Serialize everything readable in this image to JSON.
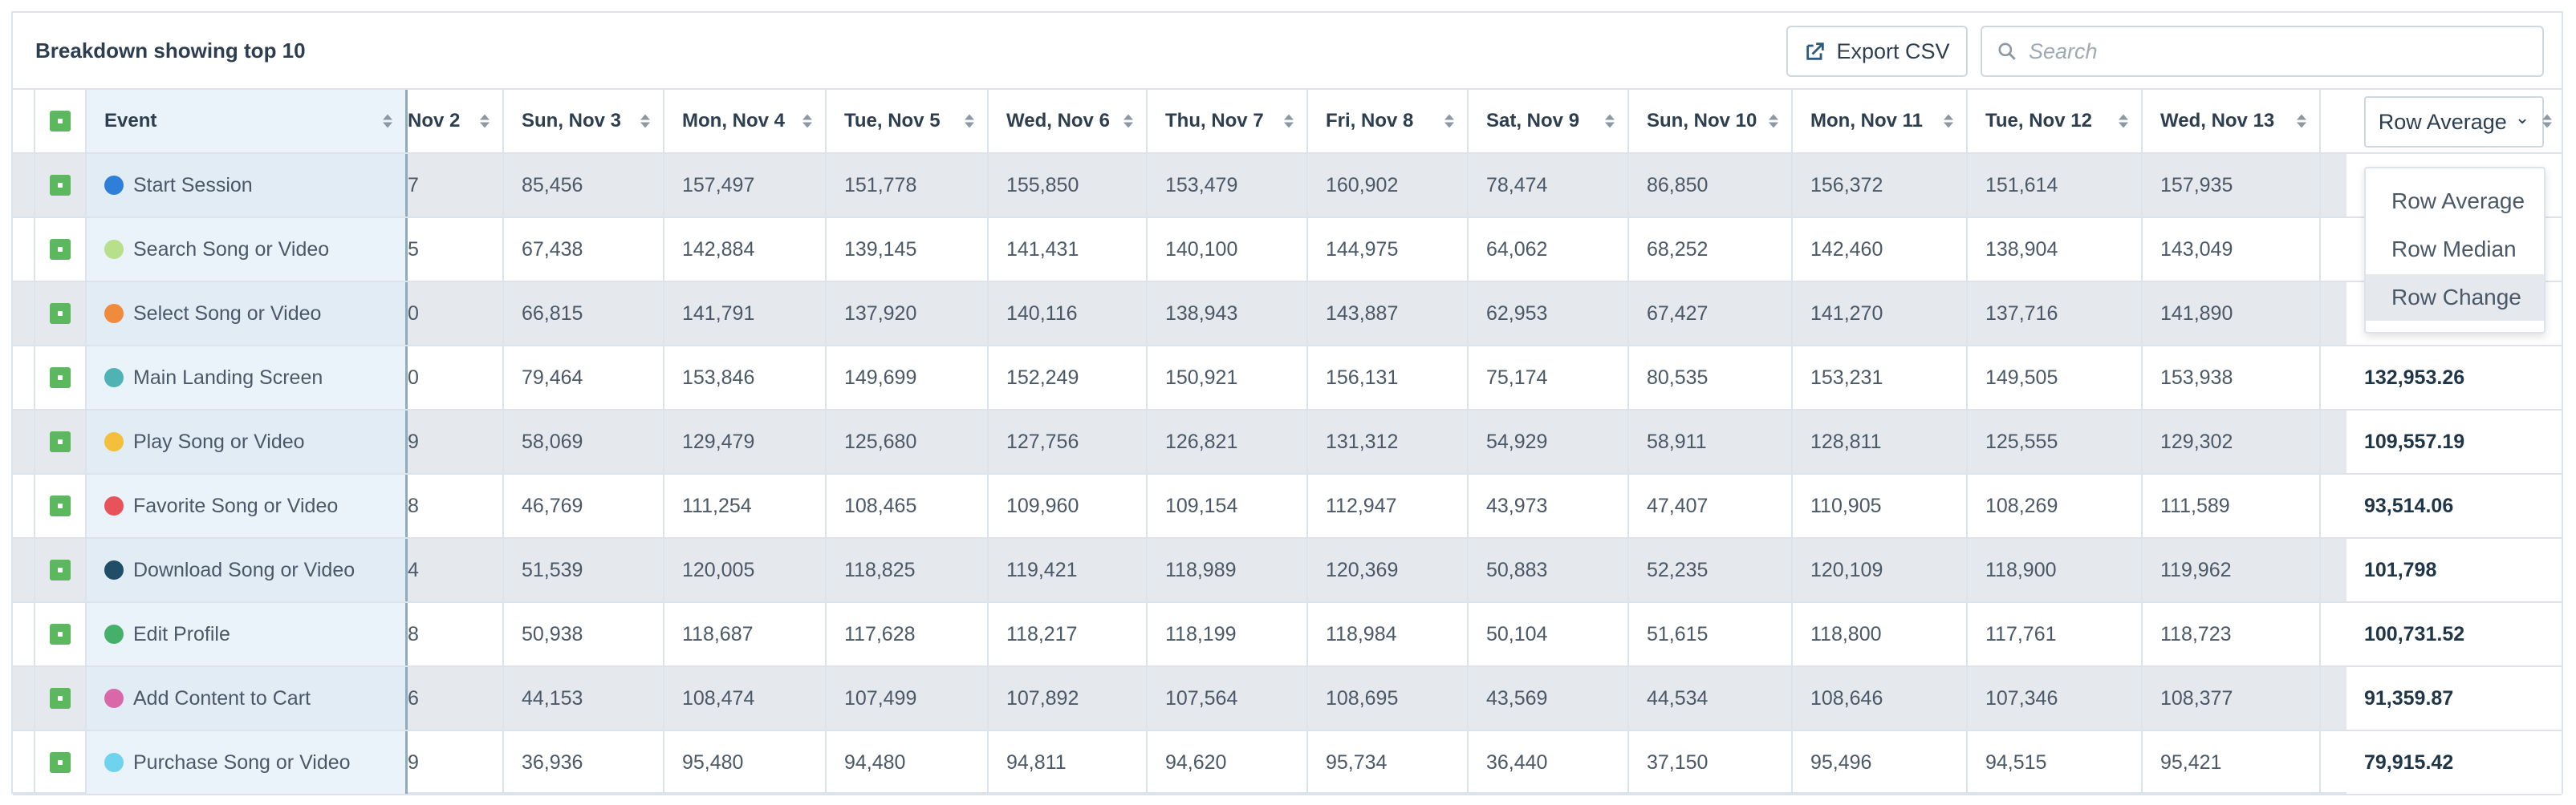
{
  "header": {
    "title": "Breakdown showing top 10",
    "export_label": "Export CSV",
    "search_placeholder": "Search"
  },
  "columns": {
    "event": "Event",
    "dates": [
      "Nov 2",
      "Sun, Nov 3",
      "Mon, Nov 4",
      "Tue, Nov 5",
      "Wed, Nov 6",
      "Thu, Nov 7",
      "Fri, Nov 8",
      "Sat, Nov 9",
      "Sun, Nov 10",
      "Mon, Nov 11",
      "Tue, Nov 12",
      "Wed, Nov 13"
    ],
    "average_selector": "Row Average"
  },
  "dropdown": {
    "options": [
      "Row Average",
      "Row Median",
      "Row Change"
    ],
    "highlighted": "Row Change"
  },
  "rows": [
    {
      "event": "Start Session",
      "color": "#2f7ed8",
      "values": [
        "7",
        "85,456",
        "157,497",
        "151,778",
        "155,850",
        "153,479",
        "160,902",
        "78,474",
        "86,850",
        "156,372",
        "151,614",
        "157,935"
      ],
      "average": ""
    },
    {
      "event": "Search Song or Video",
      "color": "#b8e08a",
      "values": [
        "5",
        "67,438",
        "142,884",
        "139,145",
        "141,431",
        "140,100",
        "144,975",
        "64,062",
        "68,252",
        "142,460",
        "138,904",
        "143,049"
      ],
      "average": ""
    },
    {
      "event": "Select Song or Video",
      "color": "#f08a3c",
      "values": [
        "0",
        "66,815",
        "141,791",
        "137,920",
        "140,116",
        "138,943",
        "143,887",
        "62,953",
        "67,427",
        "141,270",
        "137,716",
        "141,890"
      ],
      "average": ""
    },
    {
      "event": "Main Landing Screen",
      "color": "#4fb3b3",
      "values": [
        "0",
        "79,464",
        "153,846",
        "149,699",
        "152,249",
        "150,921",
        "156,131",
        "75,174",
        "80,535",
        "153,231",
        "149,505",
        "153,938"
      ],
      "average": "132,953.26"
    },
    {
      "event": "Play Song or Video",
      "color": "#f4bf3a",
      "values": [
        "9",
        "58,069",
        "129,479",
        "125,680",
        "127,756",
        "126,821",
        "131,312",
        "54,929",
        "58,911",
        "128,811",
        "125,555",
        "129,302"
      ],
      "average": "109,557.19"
    },
    {
      "event": "Favorite Song or Video",
      "color": "#e8525a",
      "values": [
        "8",
        "46,769",
        "111,254",
        "108,465",
        "109,960",
        "109,154",
        "112,947",
        "43,973",
        "47,407",
        "110,905",
        "108,269",
        "111,589"
      ],
      "average": "93,514.06"
    },
    {
      "event": "Download Song or Video",
      "color": "#1f4e66",
      "values": [
        "4",
        "51,539",
        "120,005",
        "118,825",
        "119,421",
        "118,989",
        "120,369",
        "50,883",
        "52,235",
        "120,109",
        "118,900",
        "119,962"
      ],
      "average": "101,798"
    },
    {
      "event": "Edit Profile",
      "color": "#45b06a",
      "values": [
        "8",
        "50,938",
        "118,687",
        "117,628",
        "118,217",
        "118,199",
        "118,984",
        "50,104",
        "51,615",
        "118,800",
        "117,761",
        "118,723"
      ],
      "average": "100,731.52"
    },
    {
      "event": "Add Content to Cart",
      "color": "#d868a8",
      "values": [
        "6",
        "44,153",
        "108,474",
        "107,499",
        "107,892",
        "107,564",
        "108,695",
        "43,569",
        "44,534",
        "108,646",
        "107,346",
        "108,377"
      ],
      "average": "91,359.87"
    },
    {
      "event": "Purchase Song or Video",
      "color": "#6fd3ee",
      "values": [
        "9",
        "36,936",
        "95,480",
        "94,480",
        "94,811",
        "94,620",
        "95,734",
        "36,440",
        "37,150",
        "95,496",
        "94,515",
        "95,421"
      ],
      "average": "79,915.42"
    }
  ]
}
